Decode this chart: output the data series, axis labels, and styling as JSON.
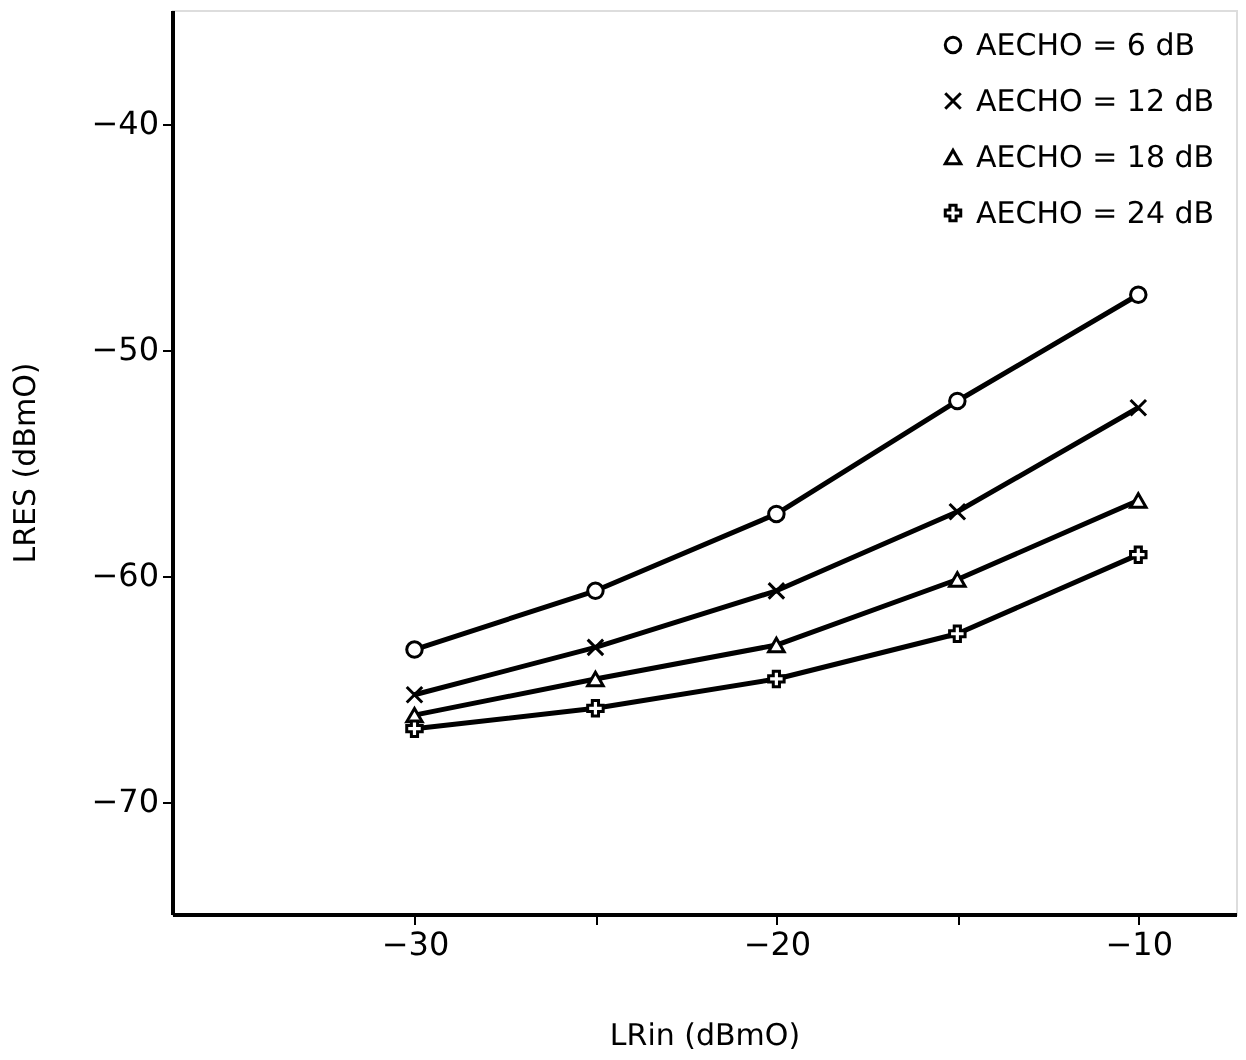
{
  "chart_data": {
    "type": "line",
    "xlabel": "LRin   (dBmO)",
    "ylabel": "LRES   (dBmO)",
    "x": [
      -30,
      -25,
      -20,
      -15,
      -10
    ],
    "series": [
      {
        "name": "AECHO =  6 dB",
        "color": "#000000",
        "marker": "circle",
        "values": [
          -63.3,
          -60.7,
          -57.3,
          -52.3,
          -47.6
        ]
      },
      {
        "name": "AECHO = 12 dB",
        "color": "#000000",
        "marker": "cross",
        "values": [
          -65.3,
          -63.2,
          -60.7,
          -57.2,
          -52.6
        ]
      },
      {
        "name": "AECHO = 18 dB",
        "color": "#000000",
        "marker": "triangle",
        "values": [
          -66.2,
          -64.6,
          -63.1,
          -60.2,
          -56.7
        ]
      },
      {
        "name": "AECHO = 24 dB",
        "color": "#000000",
        "marker": "plus",
        "values": [
          -66.8,
          -65.9,
          -64.6,
          -62.6,
          -59.1
        ]
      }
    ],
    "xlim": [
      -36.7,
      -7.3
    ],
    "xticks": [
      -30,
      -20,
      -10,
      {
        "value": -25,
        "label": null
      },
      {
        "value": -15,
        "label": null
      }
    ],
    "ylim": [
      -75,
      -35
    ],
    "yticks": [
      -40,
      -50,
      -60,
      -70
    ],
    "grid": false,
    "legend": "top right",
    "line_style": "solid"
  }
}
